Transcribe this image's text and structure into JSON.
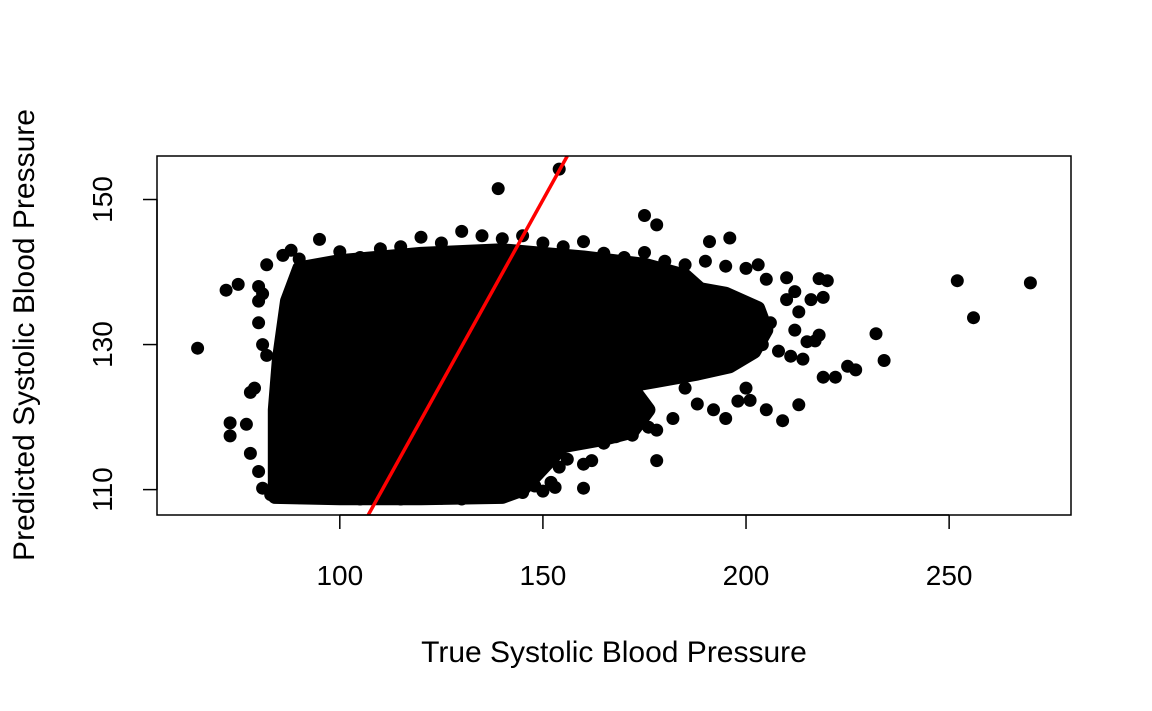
{
  "chart_data": {
    "type": "scatter",
    "title": "",
    "xlabel": "True Systolic Blood Pressure",
    "ylabel": "Predicted Systolic Blood Pressure",
    "xlim": [
      55,
      280
    ],
    "ylim": [
      106.5,
      156
    ],
    "xticks": [
      100,
      150,
      200,
      250
    ],
    "yticks": [
      110,
      130,
      150
    ],
    "grid": false,
    "legend": "none",
    "point_color": "#000000",
    "line_color": "#ff0000",
    "reference_line": {
      "x": [
        107,
        156
      ],
      "y": [
        106.5,
        156
      ]
    },
    "points": [
      [
        65,
        129.5
      ],
      [
        72,
        137.5
      ],
      [
        75,
        138.3
      ],
      [
        73,
        119.2
      ],
      [
        73,
        117.4
      ],
      [
        77,
        119
      ],
      [
        78,
        123.4
      ],
      [
        79,
        124
      ],
      [
        80,
        136
      ],
      [
        81,
        137
      ],
      [
        80,
        138
      ],
      [
        82,
        141
      ],
      [
        80,
        133
      ],
      [
        81,
        130
      ],
      [
        82,
        128.5
      ],
      [
        78,
        115
      ],
      [
        80,
        112.5
      ],
      [
        81,
        110.2
      ],
      [
        83,
        109.3
      ],
      [
        86,
        142.3
      ],
      [
        88,
        143
      ],
      [
        90,
        141.8
      ],
      [
        95,
        144.5
      ],
      [
        100,
        142.8
      ],
      [
        105,
        142
      ],
      [
        110,
        143.2
      ],
      [
        115,
        143.5
      ],
      [
        120,
        144.8
      ],
      [
        125,
        144
      ],
      [
        130,
        145.6
      ],
      [
        135,
        145
      ],
      [
        140,
        144.6
      ],
      [
        145,
        145
      ],
      [
        150,
        144
      ],
      [
        155,
        143.5
      ],
      [
        160,
        144.2
      ],
      [
        165,
        142.6
      ],
      [
        170,
        142
      ],
      [
        175,
        142.7
      ],
      [
        180,
        141.5
      ],
      [
        185,
        141
      ],
      [
        190,
        141.5
      ],
      [
        195,
        140.8
      ],
      [
        200,
        140.5
      ],
      [
        203,
        141
      ],
      [
        139,
        151.5
      ],
      [
        154,
        154.2
      ],
      [
        175,
        147.8
      ],
      [
        178,
        146.5
      ],
      [
        191,
        144.2
      ],
      [
        196,
        144.7
      ],
      [
        205,
        139
      ],
      [
        210,
        139.2
      ],
      [
        212,
        137.3
      ],
      [
        218,
        139.1
      ],
      [
        220,
        138.8
      ],
      [
        216,
        136.2
      ],
      [
        219,
        136.5
      ],
      [
        210,
        136.2
      ],
      [
        213,
        134.5
      ],
      [
        206,
        133
      ],
      [
        212,
        132
      ],
      [
        218,
        131.3
      ],
      [
        215,
        130.4
      ],
      [
        204,
        130
      ],
      [
        208,
        129.1
      ],
      [
        211,
        128.4
      ],
      [
        214,
        128
      ],
      [
        217,
        130.5
      ],
      [
        225,
        127
      ],
      [
        227,
        126.5
      ],
      [
        222,
        125.5
      ],
      [
        219,
        125.5
      ],
      [
        232,
        131.5
      ],
      [
        234,
        127.8
      ],
      [
        252,
        138.8
      ],
      [
        256,
        133.7
      ],
      [
        270,
        138.5
      ],
      [
        205,
        121
      ],
      [
        209,
        119.5
      ],
      [
        213,
        121.7
      ],
      [
        200,
        124
      ],
      [
        198,
        122.2
      ],
      [
        201,
        122.3
      ],
      [
        195,
        119.8
      ],
      [
        192,
        121
      ],
      [
        188,
        121.8
      ],
      [
        185,
        124
      ],
      [
        182,
        119.8
      ],
      [
        178,
        118.2
      ],
      [
        176,
        118.6
      ],
      [
        175,
        120.5
      ],
      [
        170,
        119.2
      ],
      [
        168,
        117.3
      ],
      [
        165,
        116.4
      ],
      [
        162,
        114
      ],
      [
        160,
        113.5
      ],
      [
        158,
        116.4
      ],
      [
        156,
        114.2
      ],
      [
        154,
        113.1
      ],
      [
        152,
        111
      ],
      [
        150,
        109.8
      ],
      [
        148,
        110.5
      ],
      [
        153,
        110.3
      ],
      [
        160,
        110.2
      ],
      [
        172,
        117.5
      ],
      [
        178,
        114
      ],
      [
        100,
        109
      ],
      [
        105,
        108.7
      ],
      [
        110,
        108.8
      ],
      [
        115,
        108.7
      ],
      [
        120,
        108.9
      ],
      [
        125,
        108.8
      ],
      [
        130,
        108.7
      ],
      [
        135,
        109
      ],
      [
        140,
        109.2
      ],
      [
        145,
        109.6
      ],
      [
        90,
        108.9
      ],
      [
        95,
        109.1
      ]
    ]
  }
}
